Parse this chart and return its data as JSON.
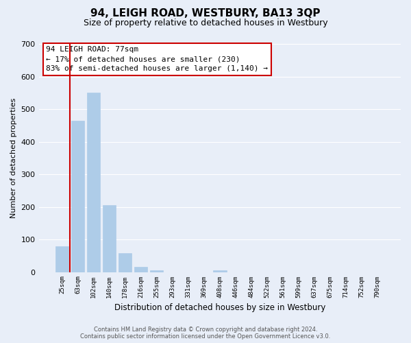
{
  "title": "94, LEIGH ROAD, WESTBURY, BA13 3QP",
  "subtitle": "Size of property relative to detached houses in Westbury",
  "xlabel": "Distribution of detached houses by size in Westbury",
  "ylabel": "Number of detached properties",
  "bar_labels": [
    "25sqm",
    "63sqm",
    "102sqm",
    "140sqm",
    "178sqm",
    "216sqm",
    "255sqm",
    "293sqm",
    "331sqm",
    "369sqm",
    "408sqm",
    "446sqm",
    "484sqm",
    "522sqm",
    "561sqm",
    "599sqm",
    "637sqm",
    "675sqm",
    "714sqm",
    "752sqm",
    "790sqm"
  ],
  "bar_heights": [
    80,
    465,
    550,
    205,
    57,
    15,
    5,
    0,
    0,
    0,
    5,
    0,
    0,
    0,
    0,
    0,
    0,
    0,
    0,
    0,
    0
  ],
  "bar_color": "#aecce8",
  "bar_edge_color": "#aecce8",
  "ylim": [
    0,
    700
  ],
  "yticks": [
    0,
    100,
    200,
    300,
    400,
    500,
    600,
    700
  ],
  "marker_line_color": "#cc0000",
  "annotation_title": "94 LEIGH ROAD: 77sqm",
  "annotation_line1": "← 17% of detached houses are smaller (230)",
  "annotation_line2": "83% of semi-detached houses are larger (1,140) →",
  "footer_line1": "Contains HM Land Registry data © Crown copyright and database right 2024.",
  "footer_line2": "Contains public sector information licensed under the Open Government Licence v3.0.",
  "bg_color": "#e8eef8",
  "grid_color": "#ffffff",
  "annotation_box_color": "#ffffff",
  "annotation_box_edge": "#cc0000"
}
